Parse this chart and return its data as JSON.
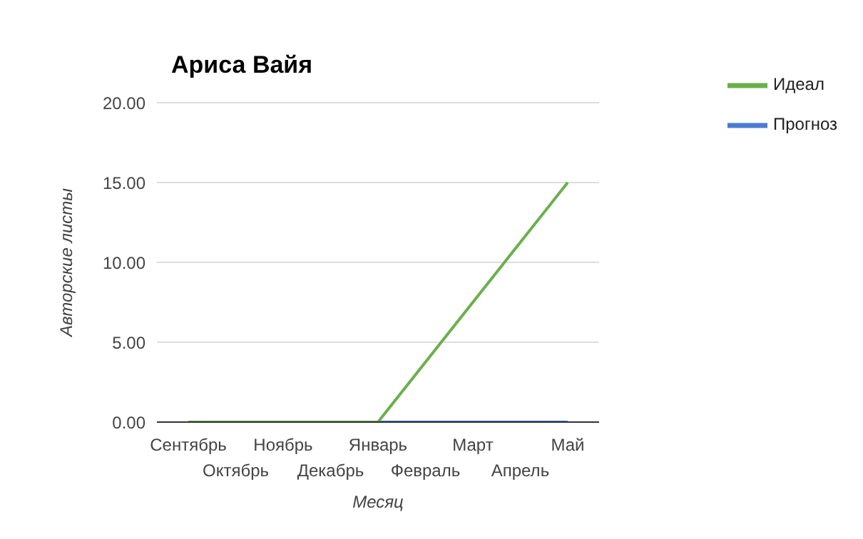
{
  "chart_data": {
    "type": "line",
    "title": "Ариса Вайя",
    "xlabel": "Месяц",
    "ylabel": "Авторские листы",
    "categories": [
      "Сентябрь",
      "Октябрь",
      "Ноябрь",
      "Декабрь",
      "Январь",
      "Февраль",
      "Март",
      "Апрель",
      "Май"
    ],
    "series": [
      {
        "name": "Прогноз",
        "color": "#4a7bd4",
        "values": [
          null,
          null,
          null,
          null,
          0,
          0,
          0,
          0,
          0
        ]
      },
      {
        "name": "Идеал",
        "color": "#6ab04c",
        "values": [
          0,
          0,
          0,
          0,
          0,
          3.75,
          7.5,
          11.25,
          15
        ]
      }
    ],
    "ylim": [
      0,
      20
    ],
    "yticks": [
      {
        "value": 0,
        "label": "0.00"
      },
      {
        "value": 5,
        "label": "5.00"
      },
      {
        "value": 10,
        "label": "10.00"
      },
      {
        "value": 15,
        "label": "15.00"
      },
      {
        "value": 20,
        "label": "20.00"
      }
    ],
    "grid": "y",
    "legend": "top right",
    "marker": "none",
    "line_style": "solid"
  }
}
